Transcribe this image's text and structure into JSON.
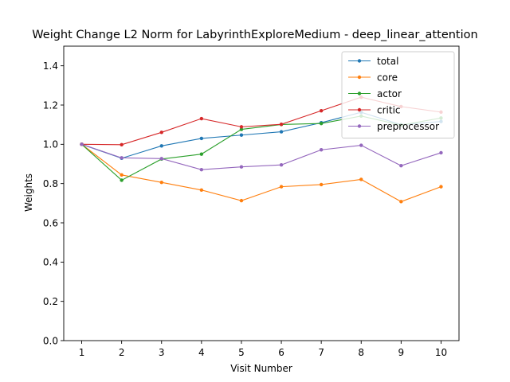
{
  "chart_data": {
    "type": "line",
    "title": "Weight Change L2 Norm for LabyrinthExploreMedium - deep_linear_attention",
    "xlabel": "Visit Number",
    "ylabel": "Weights",
    "x": [
      1,
      2,
      3,
      4,
      5,
      6,
      7,
      8,
      9,
      10
    ],
    "xticks": [
      "1",
      "2",
      "3",
      "4",
      "5",
      "6",
      "7",
      "8",
      "9",
      "10"
    ],
    "xlim": [
      0.55,
      10.45
    ],
    "ylim": [
      0.0,
      1.5
    ],
    "yticks": [
      "0.0",
      "0.2",
      "0.4",
      "0.6",
      "0.8",
      "1.0",
      "1.2",
      "1.4"
    ],
    "grid": false,
    "legend_position": "top-right",
    "series": [
      {
        "name": "total",
        "color": "#1f77b4",
        "values": [
          1.0,
          0.929,
          0.992,
          1.03,
          1.047,
          1.064,
          1.11,
          1.163,
          1.1,
          1.116
        ]
      },
      {
        "name": "core",
        "color": "#ff7f0e",
        "values": [
          1.0,
          0.844,
          0.806,
          0.767,
          0.713,
          0.784,
          0.795,
          0.821,
          0.708,
          0.784
        ]
      },
      {
        "name": "actor",
        "color": "#2ca02c",
        "values": [
          1.0,
          0.817,
          0.925,
          0.95,
          1.076,
          1.101,
          1.106,
          1.144,
          1.098,
          1.134
        ]
      },
      {
        "name": "critic",
        "color": "#d62728",
        "values": [
          1.0,
          0.998,
          1.061,
          1.131,
          1.089,
          1.102,
          1.171,
          1.24,
          1.192,
          1.164
        ]
      },
      {
        "name": "preprocessor",
        "color": "#9467bd",
        "values": [
          1.0,
          0.931,
          0.927,
          0.871,
          0.885,
          0.895,
          0.972,
          0.995,
          0.891,
          0.957
        ]
      }
    ]
  }
}
